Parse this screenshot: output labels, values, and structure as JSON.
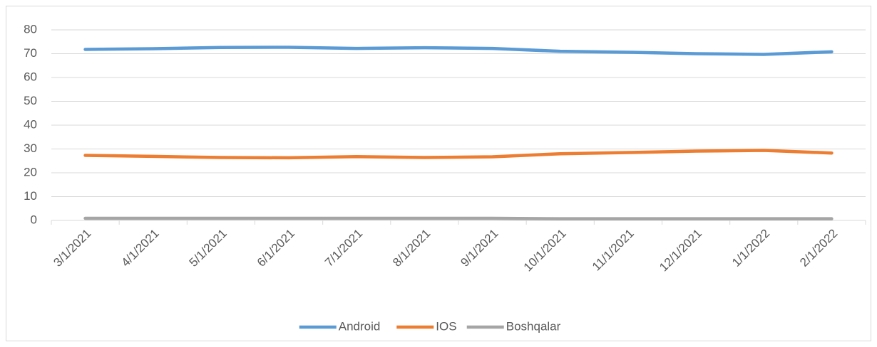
{
  "chart_data": {
    "type": "line",
    "categories": [
      "3/1/2021",
      "4/1/2021",
      "5/1/2021",
      "6/1/2021",
      "7/1/2021",
      "8/1/2021",
      "9/1/2021",
      "10/1/2021",
      "11/1/2021",
      "12/1/2021",
      "1/1/2022",
      "2/1/2022"
    ],
    "series": [
      {
        "name": "Android",
        "color": "#5b9bd5",
        "values": [
          71.8,
          72.1,
          72.6,
          72.7,
          72.2,
          72.5,
          72.2,
          71.0,
          70.6,
          70.0,
          69.7,
          70.8
        ]
      },
      {
        "name": "IOS",
        "color": "#ed7d31",
        "values": [
          27.3,
          26.9,
          26.4,
          26.3,
          26.8,
          26.4,
          26.7,
          28.0,
          28.5,
          29.1,
          29.4,
          28.3
        ]
      },
      {
        "name": "Boshqalar",
        "color": "#a5a5a5",
        "values": [
          0.9,
          0.9,
          0.9,
          0.9,
          0.9,
          0.9,
          0.9,
          0.7,
          0.7,
          0.7,
          0.7,
          0.7
        ]
      }
    ],
    "ylim": [
      0,
      80
    ],
    "yticks": [
      0,
      10,
      20,
      30,
      40,
      50,
      60,
      70,
      80
    ],
    "grid": true,
    "legend": "bottom"
  }
}
